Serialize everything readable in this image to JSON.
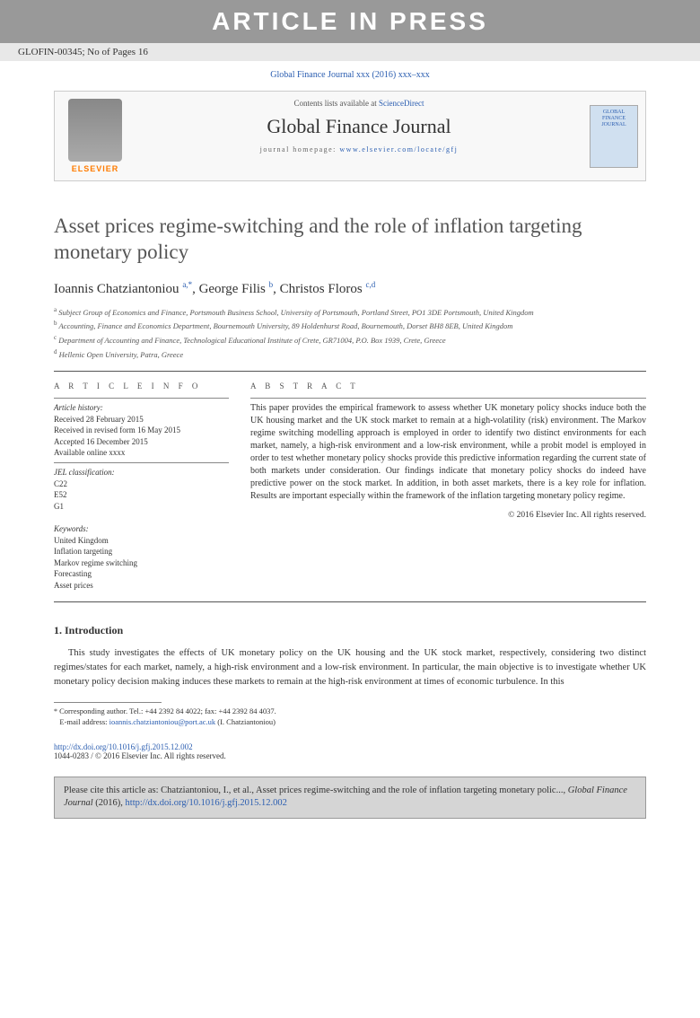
{
  "banner": "ARTICLE IN PRESS",
  "refid": "GLOFIN-00345; No of Pages 16",
  "citation_line": "Global Finance Journal xxx (2016) xxx–xxx",
  "header": {
    "contents_prefix": "Contents lists available at ",
    "sciencedirect": "ScienceDirect",
    "journal": "Global Finance Journal",
    "homepage_prefix": "journal homepage: ",
    "homepage_url": "www.elsevier.com/locate/gfj",
    "elsevier_label": "ELSEVIER",
    "cover_text": "GLOBAL FINANCE JOURNAL"
  },
  "title": "Asset prices regime-switching and the role of inflation targeting monetary policy",
  "authors": {
    "a1_name": "Ioannis Chatziantoniou",
    "a1_sup": "a,",
    "a1_star": "*",
    "a2_name": "George Filis",
    "a2_sup": "b",
    "a3_name": "Christos Floros",
    "a3_sup": "c,d"
  },
  "affils": {
    "a": "Subject Group of Economics and Finance, Portsmouth Business School, University of Portsmouth, Portland Street, PO1 3DE Portsmouth, United Kingdom",
    "b": "Accounting, Finance and Economics Department, Bournemouth University, 89 Holdenhurst Road, Bournemouth, Dorset BH8 8EB, United Kingdom",
    "c": "Department of Accounting and Finance, Technological Educational Institute of Crete, GR71004, P.O. Box 1939, Crete, Greece",
    "d": "Hellenic Open University, Patra, Greece"
  },
  "info": {
    "heading": "A R T I C L E   I N F O",
    "history_label": "Article history:",
    "received": "Received 28 February 2015",
    "revised": "Received in revised form 16 May 2015",
    "accepted": "Accepted 16 December 2015",
    "online": "Available online xxxx",
    "jel_label": "JEL classification:",
    "jel1": "C22",
    "jel2": "E52",
    "jel3": "G1",
    "kw_label": "Keywords:",
    "kw1": "United Kingdom",
    "kw2": "Inflation targeting",
    "kw3": "Markov regime switching",
    "kw4": "Forecasting",
    "kw5": "Asset prices"
  },
  "abstract": {
    "heading": "A B S T R A C T",
    "text": "This paper provides the empirical framework to assess whether UK monetary policy shocks induce both the UK housing market and the UK stock market to remain at a high-volatility (risk) environment. The Markov regime switching modelling approach is employed in order to identify two distinct environments for each market, namely, a high-risk environment and a low-risk environment, while a probit model is employed in order to test whether monetary policy shocks provide this predictive information regarding the current state of both markets under consideration. Our findings indicate that monetary policy shocks do indeed have predictive power on the stock market. In addition, in both asset markets, there is a key role for inflation. Results are important especially within the framework of the inflation targeting monetary policy regime.",
    "copyright": "© 2016 Elsevier Inc. All rights reserved."
  },
  "intro": {
    "heading": "1. Introduction",
    "text": "This study investigates the effects of UK monetary policy on the UK housing and the UK stock market, respectively, considering two distinct regimes/states for each market, namely, a high-risk environment and a low-risk environment. In particular, the main objective is to investigate whether UK monetary policy decision making induces these markets to remain at the high-risk environment at times of economic turbulence. In this"
  },
  "footnote": {
    "corr": "Corresponding author. Tel.: +44 2392 84 4022; fax: +44 2392 84 4037.",
    "email_label": "E-mail address:",
    "email": "ioannis.chatziantoniou@port.ac.uk",
    "email_paren": "(I. Chatziantoniou)"
  },
  "doi": {
    "url": "http://dx.doi.org/10.1016/j.gfj.2015.12.002",
    "issn": "1044-0283 / © 2016 Elsevier Inc. All rights reserved."
  },
  "citebox": {
    "prefix": "Please cite this article as: Chatziantoniou, I., et al., Asset prices regime-switching and the role of inflation targeting monetary polic..., ",
    "journal": "Global Finance Journal",
    "year": " (2016), ",
    "url": "http://dx.doi.org/10.1016/j.gfj.2015.12.002"
  }
}
